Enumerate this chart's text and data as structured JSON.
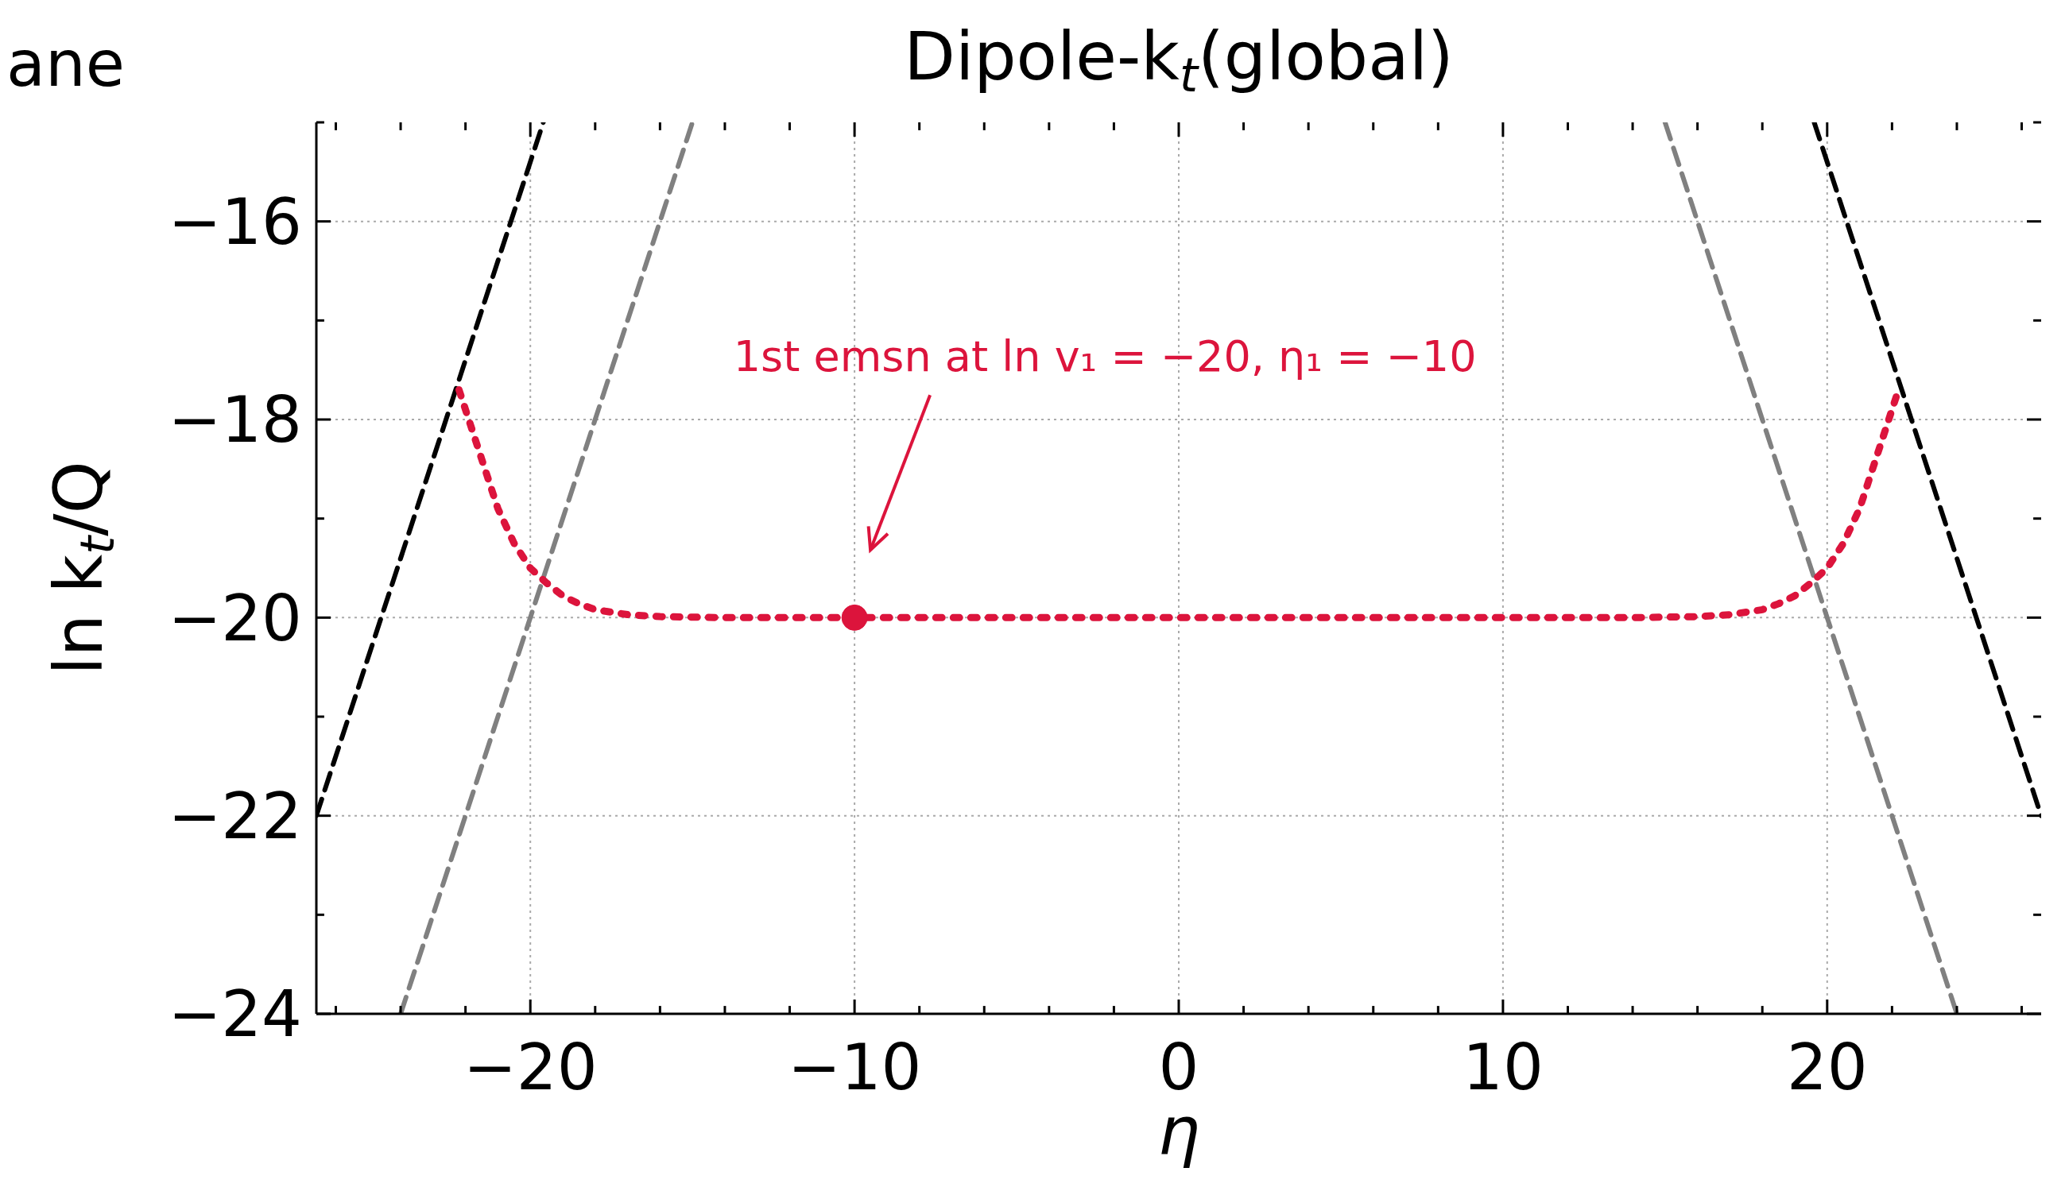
{
  "chart_data": {
    "type": "line",
    "title": "Dipole-k$_{t}$(global)",
    "xlabel": "η",
    "ylabel": "ln  k$_{t}$/Q",
    "xlim": [
      -26.6,
      26.6
    ],
    "ylim": [
      -24,
      -15
    ],
    "xticks": [
      {
        "value": -26,
        "label": null
      },
      {
        "value": -24,
        "label": null
      },
      {
        "value": -22,
        "label": null
      },
      {
        "value": -20,
        "label": "−20"
      },
      {
        "value": -18,
        "label": null
      },
      {
        "value": -16,
        "label": null
      },
      {
        "value": -14,
        "label": null
      },
      {
        "value": -12,
        "label": null
      },
      {
        "value": -10,
        "label": "−10"
      },
      {
        "value": -8,
        "label": null
      },
      {
        "value": -6,
        "label": null
      },
      {
        "value": -4,
        "label": null
      },
      {
        "value": -2,
        "label": null
      },
      0,
      {
        "value": 2,
        "label": null
      },
      {
        "value": 4,
        "label": null
      },
      {
        "value": 6,
        "label": null
      },
      {
        "value": 8,
        "label": null
      },
      10,
      {
        "value": 12,
        "label": null
      },
      {
        "value": 14,
        "label": null
      },
      {
        "value": 16,
        "label": null
      },
      {
        "value": 18,
        "label": null
      },
      20,
      {
        "value": 22,
        "label": null
      },
      {
        "value": 24,
        "label": null
      },
      {
        "value": 26,
        "label": null
      }
    ],
    "yticks": [
      {
        "value": -24,
        "label": "−24"
      },
      {
        "value": -23,
        "label": null
      },
      {
        "value": -22,
        "label": "−22"
      },
      {
        "value": -21,
        "label": null
      },
      {
        "value": -20,
        "label": "−20"
      },
      {
        "value": -19,
        "label": null
      },
      {
        "value": -18,
        "label": "−18"
      },
      {
        "value": -17,
        "label": null
      },
      {
        "value": -16,
        "label": "−16"
      },
      {
        "value": -15,
        "label": null
      }
    ],
    "grid": true,
    "series": [
      {
        "color": "#000000",
        "line_style": "dashed",
        "marker": "none",
        "x": [
          -26.6,
          -19.6
        ],
        "values": [
          -22,
          -15
        ]
      },
      {
        "color": "#000000",
        "line_style": "dashed",
        "marker": "none",
        "x": [
          19.6,
          26.6
        ],
        "values": [
          -15,
          -22
        ]
      },
      {
        "color": "#808080",
        "line_style": "dashed",
        "marker": "none",
        "x": [
          -24,
          -15
        ],
        "values": [
          -24,
          -15
        ]
      },
      {
        "color": "#808080",
        "line_style": "dashed",
        "marker": "none",
        "x": [
          15,
          24
        ],
        "values": [
          -15,
          -24
        ]
      },
      {
        "color": "#dc143c",
        "line_style": "dotted",
        "marker": "none",
        "x": [
          -22.2,
          -21.5,
          -21,
          -20.5,
          -20,
          -19.5,
          -19,
          -18.5,
          -18,
          -17,
          -16,
          -14,
          -10,
          0,
          10,
          14,
          16,
          17,
          18,
          18.5,
          19,
          19.5,
          20,
          20.5,
          21,
          21.5,
          22.2
        ],
        "values": [
          -17.7,
          -18.4,
          -18.9,
          -19.25,
          -19.5,
          -19.65,
          -19.78,
          -19.86,
          -19.92,
          -19.97,
          -19.99,
          -20,
          -20,
          -20,
          -20,
          -20,
          -19.99,
          -19.97,
          -19.92,
          -19.86,
          -19.78,
          -19.65,
          -19.5,
          -19.25,
          -18.9,
          -18.4,
          -17.7
        ]
      },
      {
        "type": "scatter",
        "color": "#dc143c",
        "marker": "circle",
        "x": [
          -10
        ],
        "values": [
          -20
        ]
      }
    ],
    "annotations": [
      "1st emsn at ln v₁ = −20, η₁ = −10",
      "ane"
    ]
  }
}
